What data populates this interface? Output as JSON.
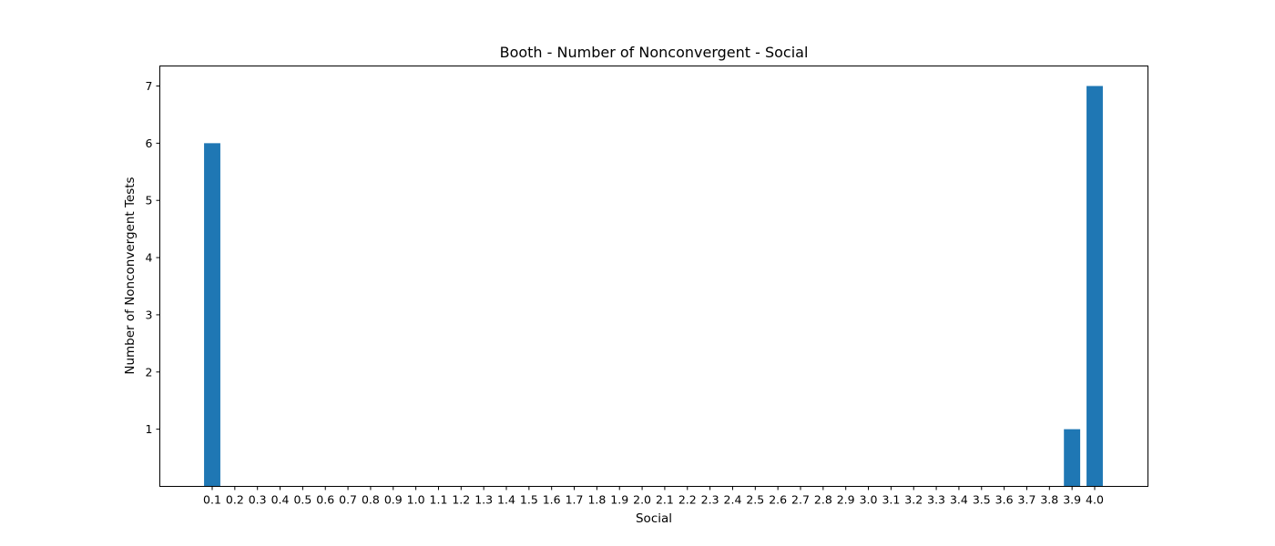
{
  "chart_data": {
    "type": "bar",
    "title": "Booth - Number of Nonconvergent - Social",
    "xlabel": "Social",
    "ylabel": "Number of Nonconvergent Tests",
    "categories": [
      "0.1",
      "0.2",
      "0.3",
      "0.4",
      "0.5",
      "0.6",
      "0.7",
      "0.8",
      "0.9",
      "1.0",
      "1.1",
      "1.2",
      "1.3",
      "1.4",
      "1.5",
      "1.6",
      "1.7",
      "1.8",
      "1.9",
      "2.0",
      "2.1",
      "2.2",
      "2.3",
      "2.4",
      "2.5",
      "2.6",
      "2.7",
      "2.8",
      "2.9",
      "3.0",
      "3.1",
      "3.2",
      "3.3",
      "3.4",
      "3.5",
      "3.6",
      "3.7",
      "3.8",
      "3.9",
      "4.0"
    ],
    "values": [
      6,
      0,
      0,
      0,
      0,
      0,
      0,
      0,
      0,
      0,
      0,
      0,
      0,
      0,
      0,
      0,
      0,
      0,
      0,
      0,
      0,
      0,
      0,
      0,
      0,
      0,
      0,
      0,
      0,
      0,
      0,
      0,
      0,
      0,
      0,
      0,
      0,
      0,
      1,
      7
    ],
    "yticks": [
      1,
      2,
      3,
      4,
      5,
      6,
      7
    ],
    "ylim": [
      0,
      7.35
    ],
    "bar_color": "#1f77b4",
    "grid": false
  }
}
